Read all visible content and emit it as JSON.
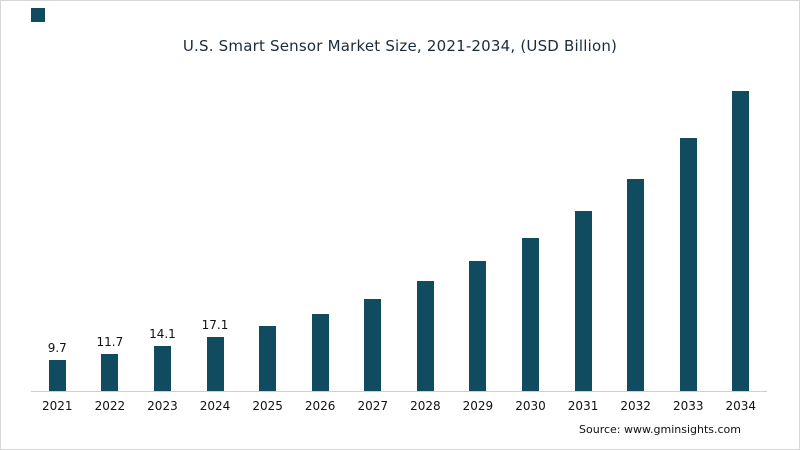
{
  "colors": {
    "bar": "#114b5f",
    "title": "#1c2b39",
    "axis_line": "#cfcfcf"
  },
  "chart": {
    "title": "U.S. Smart Sensor Market Size, 2021-2034, (USD Billion)",
    "source_note": "Source: www.gminsights.com"
  },
  "chart_data": {
    "type": "bar",
    "title": "U.S. Smart Sensor Market Size, 2021-2034, (USD Billion)",
    "categories": [
      "2021",
      "2022",
      "2023",
      "2024",
      "2025",
      "2026",
      "2027",
      "2028",
      "2029",
      "2030",
      "2031",
      "2032",
      "2033",
      "2034"
    ],
    "values": [
      9.7,
      11.7,
      14.1,
      17.1,
      20.6,
      24.4,
      29.2,
      34.7,
      40.9,
      48.4,
      56.9,
      66.9,
      79.8,
      94.6
    ],
    "data_labels": [
      "9.7",
      "11.7",
      "14.1",
      "17.1",
      "",
      "",
      "",
      "",
      "",
      "",
      "",
      "",
      "",
      ""
    ],
    "xlabel": "",
    "ylabel": "",
    "ylim": [
      0,
      101
    ],
    "grid": false,
    "legend": false,
    "bar_color": "#114b5f",
    "source": "Source: www.gminsights.com"
  }
}
